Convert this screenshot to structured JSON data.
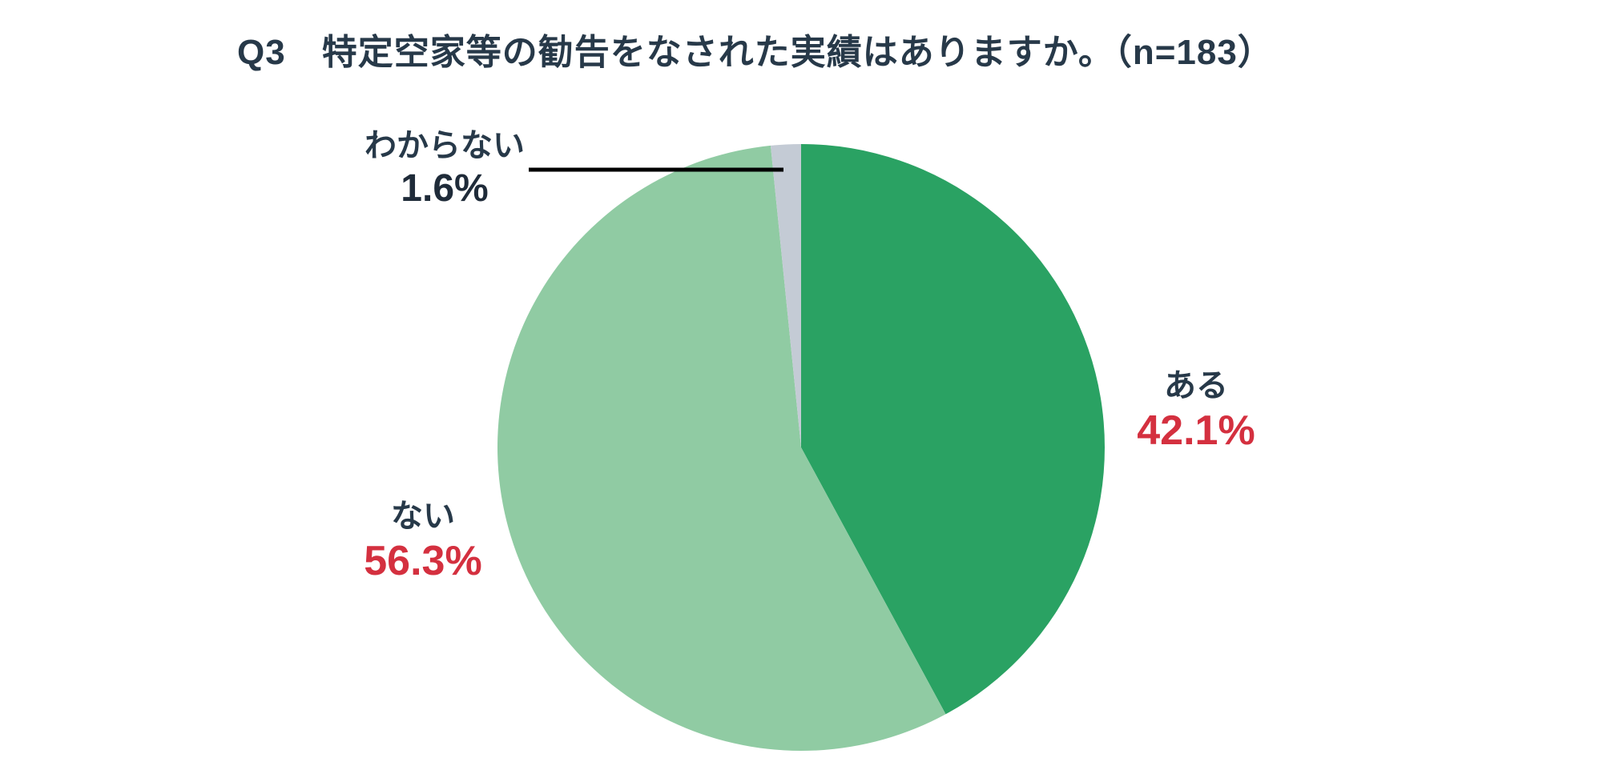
{
  "page": {
    "background": "#ffffff"
  },
  "header": {
    "title": "Q3　特定空家等の勧告をなされた実績はありますか。（n=183）"
  },
  "colors": {
    "title_text": "#273949",
    "label_text": "#273949",
    "accent_red": "#d4303f",
    "neutral_dark": "#1f2b39",
    "leader_line": "#000000",
    "background": "#ffffff"
  },
  "chart_data": {
    "type": "pie",
    "title": "Q3　特定空家等の勧告をなされた実績はありますか。（n=183）",
    "sample_size_label": "n=183",
    "sample_size": 183,
    "start_angle_deg": 0,
    "direction": "clockwise",
    "legend": "none",
    "labels_position": "outside",
    "slices": [
      {
        "label": "ある",
        "value": 42.1,
        "percent_label": "42.1%",
        "color": "#2aa263",
        "percent_color": "#d4303f"
      },
      {
        "label": "ない",
        "value": 56.3,
        "percent_label": "56.3%",
        "color": "#90cba3",
        "percent_color": "#d4303f"
      },
      {
        "label": "わからない",
        "value": 1.6,
        "percent_label": "1.6%",
        "color": "#c4cbd5",
        "percent_color": "#1f2b39"
      }
    ]
  }
}
